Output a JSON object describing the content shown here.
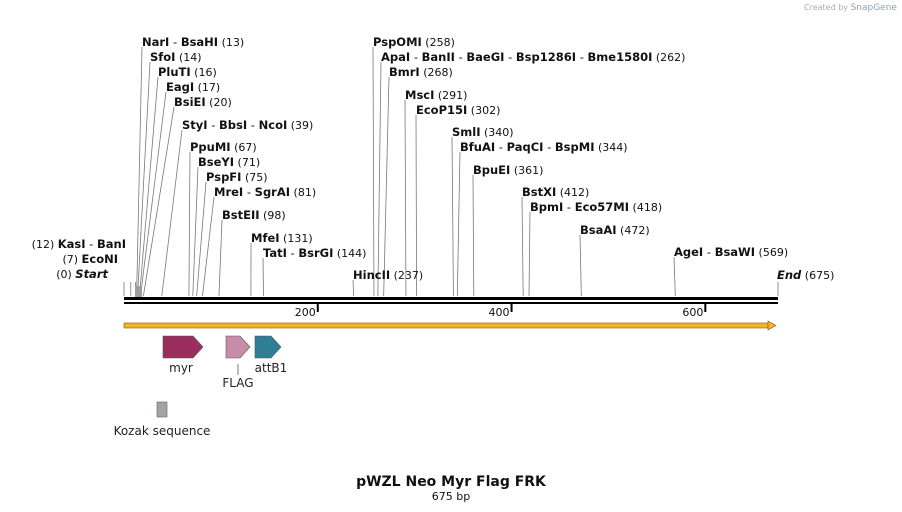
{
  "credit": {
    "prefix": "Created by",
    "brand": "SnapGene"
  },
  "title": "pWZL Neo Myr Flag FRK",
  "length_label": "675 bp",
  "sequence_length": 675,
  "ticks": [
    {
      "value": 200,
      "label": "200"
    },
    {
      "value": 400,
      "label": "400"
    },
    {
      "value": 600,
      "label": "600"
    }
  ],
  "sites": [
    {
      "names": [
        "NarI",
        "BsaHI"
      ],
      "pos": 13,
      "label": "(13)"
    },
    {
      "names": [
        "SfoI"
      ],
      "pos": 14,
      "label": "(14)"
    },
    {
      "names": [
        "PluTI"
      ],
      "pos": 16,
      "label": "(16)"
    },
    {
      "names": [
        "EagI"
      ],
      "pos": 17,
      "label": "(17)"
    },
    {
      "names": [
        "BsiEI"
      ],
      "pos": 20,
      "label": "(20)"
    },
    {
      "names": [
        "StyI",
        "BbsI",
        "NcoI"
      ],
      "pos": 39,
      "label": "(39)"
    },
    {
      "names": [
        "PpuMI"
      ],
      "pos": 67,
      "label": "(67)"
    },
    {
      "names": [
        "BseYI"
      ],
      "pos": 71,
      "label": "(71)"
    },
    {
      "names": [
        "PspFI"
      ],
      "pos": 75,
      "label": "(75)"
    },
    {
      "names": [
        "MreI",
        "SgrAI"
      ],
      "pos": 81,
      "label": "(81)"
    },
    {
      "names": [
        "BstEII"
      ],
      "pos": 98,
      "label": "(98)"
    },
    {
      "names": [
        "MfeI"
      ],
      "pos": 131,
      "label": "(131)"
    },
    {
      "names": [
        "TatI",
        "BsrGI"
      ],
      "pos": 144,
      "label": "(144)"
    },
    {
      "names": [
        "PspOMI"
      ],
      "pos": 258,
      "label": "(258)"
    },
    {
      "names": [
        "ApaI",
        "BanII",
        "BaeGI",
        "Bsp1286I",
        "Bme1580I"
      ],
      "pos": 262,
      "label": "(262)"
    },
    {
      "names": [
        "BmrI"
      ],
      "pos": 268,
      "label": "(268)"
    },
    {
      "names": [
        "MscI"
      ],
      "pos": 291,
      "label": "(291)"
    },
    {
      "names": [
        "EcoP15I"
      ],
      "pos": 302,
      "label": "(302)"
    },
    {
      "names": [
        "SmlI"
      ],
      "pos": 340,
      "label": "(340)"
    },
    {
      "names": [
        "BfuAI",
        "PaqCI",
        "BspMI"
      ],
      "pos": 344,
      "label": "(344)"
    },
    {
      "names": [
        "BpuEI"
      ],
      "pos": 361,
      "label": "(361)"
    },
    {
      "names": [
        "BstXI"
      ],
      "pos": 412,
      "label": "(412)"
    },
    {
      "names": [
        "BpmI",
        "Eco57MI"
      ],
      "pos": 418,
      "label": "(418)"
    },
    {
      "names": [
        "BsaAI"
      ],
      "pos": 472,
      "label": "(472)"
    },
    {
      "names": [
        "AgeI",
        "BsaWI"
      ],
      "pos": 569,
      "label": "(569)"
    },
    {
      "names": [
        "HincII"
      ],
      "pos": 237,
      "label": "(237)"
    }
  ],
  "left_sites": [
    {
      "names": [
        "KasI",
        "BanI"
      ],
      "pos": 12,
      "label": "(12)"
    },
    {
      "names": [
        "EcoNI"
      ],
      "pos": 7,
      "label": "(7)"
    },
    {
      "names": [
        "Start"
      ],
      "pos": 0,
      "label": "(0)",
      "italic": true
    }
  ],
  "end_site": {
    "names": [
      "End"
    ],
    "pos": 675,
    "label": "(675)",
    "italic": true
  },
  "features": [
    {
      "name": "myr",
      "start": 40,
      "end": 81,
      "color": "#9b2d5e",
      "direction": "right"
    },
    {
      "name": "FLAG",
      "start": 105,
      "end": 129,
      "color": "#c98ca8",
      "direction": "right"
    },
    {
      "name": "attB1",
      "start": 135,
      "end": 161,
      "color": "#2e7f96",
      "direction": "right"
    },
    {
      "name": "Kozak sequence",
      "start": 33,
      "end": 45,
      "color": "#a0a3a8",
      "direction": "none"
    }
  ],
  "orf": {
    "start": 0,
    "end": 675,
    "color": "#f4b32b"
  }
}
